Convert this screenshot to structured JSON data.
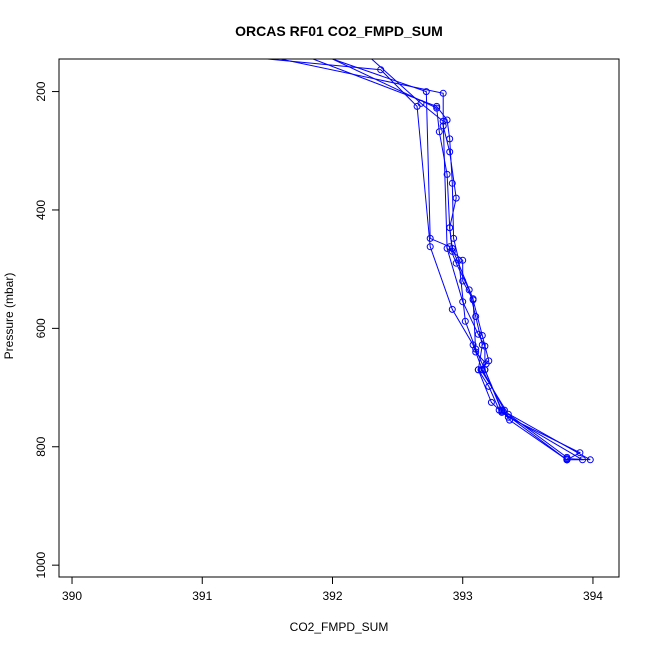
{
  "chart_data": {
    "type": "line",
    "title": "ORCAS RF01 CO2_FMPD_SUM",
    "xlabel": "CO2_FMPD_SUM",
    "ylabel": "Pressure (mbar)",
    "xlim": [
      389.9,
      394.2
    ],
    "ylim": [
      1020,
      145
    ],
    "y_reversed": true,
    "grid": false,
    "legend": "none",
    "x_ticks": [
      390,
      391,
      392,
      393,
      394
    ],
    "y_ticks": [
      200,
      400,
      600,
      800,
      1000
    ],
    "line_color": "#0000ff",
    "marker": "open-circle",
    "series": [
      {
        "points": [
          [
            391.6,
            145
          ],
          [
            392.85,
            203
          ],
          [
            392.85,
            258
          ],
          [
            392.9,
            302
          ],
          [
            392.95,
            380
          ],
          [
            392.9,
            430
          ],
          [
            392.92,
            470
          ],
          [
            393.0,
            485
          ],
          [
            393.0,
            520
          ],
          [
            393.08,
            552
          ],
          [
            393.15,
            612
          ],
          [
            393.2,
            655
          ],
          [
            393.12,
            670
          ],
          [
            393.2,
            698
          ],
          [
            393.28,
            738
          ],
          [
            393.35,
            750
          ],
          [
            393.9,
            810
          ],
          [
            393.8,
            822
          ]
        ]
      },
      {
        "points": [
          [
            392.0,
            145
          ],
          [
            392.72,
            200
          ],
          [
            392.75,
            448
          ],
          [
            392.9,
            462
          ],
          [
            392.95,
            490
          ],
          [
            393.05,
            535
          ],
          [
            393.1,
            580
          ],
          [
            393.15,
            628
          ],
          [
            393.12,
            670
          ],
          [
            393.22,
            725
          ],
          [
            393.3,
            742
          ],
          [
            393.92,
            822
          ],
          [
            393.8,
            822
          ]
        ]
      },
      {
        "points": [
          [
            391.85,
            145
          ],
          [
            392.8,
            225
          ],
          [
            392.88,
            248
          ],
          [
            392.9,
            280
          ],
          [
            392.92,
            355
          ],
          [
            392.93,
            448
          ],
          [
            392.97,
            485
          ],
          [
            393.02,
            588
          ],
          [
            393.1,
            635
          ],
          [
            393.17,
            670
          ],
          [
            393.3,
            738
          ],
          [
            393.98,
            822
          ],
          [
            393.8,
            820
          ]
        ]
      },
      {
        "points": [
          [
            392.0,
            145
          ],
          [
            392.8,
            228
          ],
          [
            392.82,
            268
          ],
          [
            392.88,
            340
          ],
          [
            392.9,
            430
          ],
          [
            392.92,
            465
          ],
          [
            393.08,
            550
          ],
          [
            393.1,
            640
          ],
          [
            393.18,
            660
          ],
          [
            393.14,
            670
          ],
          [
            393.35,
            745
          ],
          [
            393.8,
            818
          ]
        ]
      },
      {
        "points": [
          [
            391.5,
            145
          ],
          [
            392.37,
            163
          ],
          [
            392.65,
            225
          ],
          [
            392.75,
            462
          ],
          [
            392.92,
            568
          ],
          [
            393.08,
            628
          ],
          [
            393.15,
            670
          ],
          [
            393.32,
            738
          ],
          [
            393.36,
            755
          ],
          [
            393.8,
            822
          ]
        ]
      },
      {
        "points": [
          [
            392.3,
            145
          ],
          [
            392.68,
            220
          ],
          [
            392.85,
            250
          ],
          [
            392.88,
            465
          ],
          [
            393.0,
            555
          ],
          [
            393.12,
            610
          ],
          [
            393.17,
            630
          ],
          [
            393.17,
            670
          ],
          [
            393.3,
            740
          ],
          [
            393.8,
            822
          ]
        ]
      }
    ]
  }
}
